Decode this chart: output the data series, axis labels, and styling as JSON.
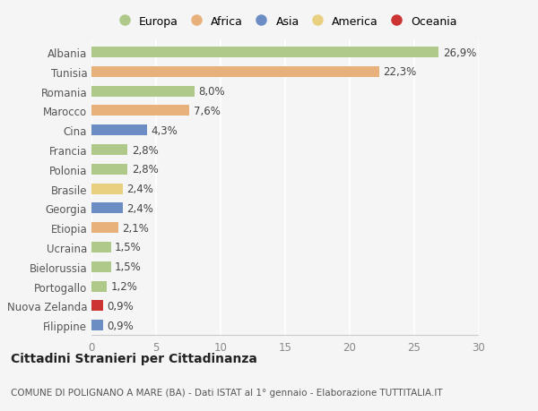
{
  "categories": [
    "Albania",
    "Tunisia",
    "Romania",
    "Marocco",
    "Cina",
    "Francia",
    "Polonia",
    "Brasile",
    "Georgia",
    "Etiopia",
    "Ucraina",
    "Bielorussia",
    "Portogallo",
    "Nuova Zelanda",
    "Filippine"
  ],
  "values": [
    26.9,
    22.3,
    8.0,
    7.6,
    4.3,
    2.8,
    2.8,
    2.4,
    2.4,
    2.1,
    1.5,
    1.5,
    1.2,
    0.9,
    0.9
  ],
  "labels": [
    "26,9%",
    "22,3%",
    "8,0%",
    "7,6%",
    "4,3%",
    "2,8%",
    "2,8%",
    "2,4%",
    "2,4%",
    "2,1%",
    "1,5%",
    "1,5%",
    "1,2%",
    "0,9%",
    "0,9%"
  ],
  "colors": [
    "#aec98a",
    "#e8b07a",
    "#aec98a",
    "#e8b07a",
    "#6b8dc4",
    "#aec98a",
    "#aec98a",
    "#e8d080",
    "#6b8dc4",
    "#e8b07a",
    "#aec98a",
    "#aec98a",
    "#aec98a",
    "#cc3333",
    "#6b8dc4"
  ],
  "legend_labels": [
    "Europa",
    "Africa",
    "Asia",
    "America",
    "Oceania"
  ],
  "legend_colors": [
    "#aec98a",
    "#e8b07a",
    "#6b8dc4",
    "#e8d080",
    "#cc3333"
  ],
  "xlim": [
    0,
    30
  ],
  "xticks": [
    0,
    5,
    10,
    15,
    20,
    25,
    30
  ],
  "title": "Cittadini Stranieri per Cittadinanza",
  "subtitle": "COMUNE DI POLIGNANO A MARE (BA) - Dati ISTAT al 1° gennaio - Elaborazione TUTTITALIA.IT",
  "background_color": "#f5f5f5",
  "plot_bg_color": "#f5f5f5",
  "grid_color": "#ffffff",
  "bar_height": 0.55,
  "label_fontsize": 8.5,
  "tick_fontsize": 8.5
}
